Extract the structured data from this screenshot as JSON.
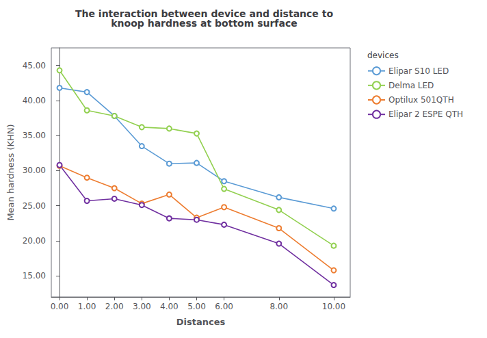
{
  "chart_data": {
    "type": "line",
    "title": "The interaction between device and distance to\nknoop hardness at bottom surface",
    "xlabel": "Distances",
    "ylabel": "Mean hardness (KHN)",
    "legend_title": "devices",
    "x": [
      0.0,
      1.0,
      2.0,
      3.0,
      4.0,
      5.0,
      6.0,
      8.0,
      10.0
    ],
    "series": [
      {
        "name": "Elipar S10 LED",
        "color": "#5b9bd5",
        "values": [
          41.8,
          41.2,
          37.8,
          33.5,
          31.0,
          31.1,
          28.5,
          26.2,
          24.6
        ]
      },
      {
        "name": "Delma LED",
        "color": "#92d050",
        "values": [
          44.3,
          38.6,
          37.8,
          36.2,
          36.0,
          35.3,
          27.4,
          24.4,
          19.3
        ]
      },
      {
        "name": "Optilux 501QTH",
        "color": "#ed7d31",
        "values": [
          30.7,
          29.0,
          27.5,
          25.3,
          26.6,
          23.3,
          24.8,
          21.8,
          15.8
        ]
      },
      {
        "name": "Elipar 2 ESPE QTH",
        "color": "#7030a0",
        "values": [
          30.8,
          25.7,
          26.0,
          25.1,
          23.2,
          23.0,
          22.3,
          19.6,
          13.7
        ]
      }
    ],
    "xlim": [
      -0.3,
      10.6
    ],
    "xticks": [
      {
        "value": 0,
        "label": "0.00"
      },
      {
        "value": 1,
        "label": "1.00"
      },
      {
        "value": 2,
        "label": "2.00"
      },
      {
        "value": 3,
        "label": "3.00"
      },
      {
        "value": 4,
        "label": "4.00"
      },
      {
        "value": 5,
        "label": "5.00"
      },
      {
        "value": 6,
        "label": "6.00"
      },
      {
        "value": 8,
        "label": "8.00"
      },
      {
        "value": 10,
        "label": "10.00"
      }
    ],
    "ylim": [
      12.0,
      47.5
    ],
    "yticks": [
      {
        "value": 15,
        "label": "15.00"
      },
      {
        "value": 20,
        "label": "20.00"
      },
      {
        "value": 25,
        "label": "25.00"
      },
      {
        "value": 30,
        "label": "30.00"
      },
      {
        "value": 35,
        "label": "35.00"
      },
      {
        "value": 40,
        "label": "40.00"
      },
      {
        "value": 45,
        "label": "45.00"
      }
    ],
    "marker": "circle",
    "grid": false,
    "legend": "right"
  }
}
